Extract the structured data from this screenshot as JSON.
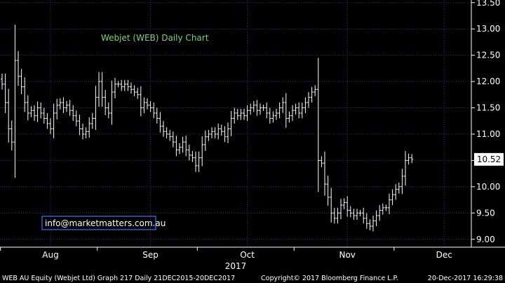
{
  "chart_data": {
    "type": "ohlc",
    "title": "Webjet (WEB) Daily Chart",
    "ylim": [
      8.85,
      13.55
    ],
    "y_ticks": [
      9.0,
      9.5,
      10.0,
      10.5,
      11.0,
      11.5,
      12.0,
      12.5,
      13.0,
      13.5
    ],
    "y_tick_labels": [
      "9.00",
      "9.50",
      "10.00",
      "10.50",
      "11.00",
      "11.50",
      "12.00",
      "12.50",
      "13.00",
      "13.50"
    ],
    "x_ticks": [
      {
        "label": "Aug",
        "index": 15
      },
      {
        "label": "Sep",
        "index": 46
      },
      {
        "label": "Oct",
        "index": 76
      },
      {
        "label": "Nov",
        "index": 107
      },
      {
        "label": "Dec",
        "index": 137
      }
    ],
    "x_group_label": "2017",
    "last_value": 10.52,
    "last_value_label": "10.52",
    "grid": true,
    "closes": [
      11.95,
      11.6,
      11.1,
      10.85,
      12.4,
      12.1,
      11.9,
      11.6,
      11.4,
      11.45,
      11.35,
      11.5,
      11.4,
      11.3,
      11.2,
      11.1,
      11.4,
      11.55,
      11.6,
      11.5,
      11.55,
      11.45,
      11.35,
      11.25,
      11.1,
      11.0,
      11.05,
      11.2,
      11.3,
      11.7,
      12.0,
      11.7,
      11.5,
      11.4,
      11.8,
      11.95,
      11.95,
      11.9,
      11.95,
      11.9,
      11.85,
      11.8,
      11.75,
      11.5,
      11.6,
      11.55,
      11.5,
      11.4,
      11.3,
      11.15,
      11.05,
      11.0,
      10.95,
      10.85,
      10.7,
      10.75,
      10.85,
      10.7,
      10.6,
      10.55,
      10.4,
      10.55,
      10.8,
      10.95,
      11.0,
      11.05,
      11.0,
      11.1,
      11.05,
      10.95,
      11.1,
      11.3,
      11.4,
      11.35,
      11.4,
      11.35,
      11.45,
      11.5,
      11.55,
      11.45,
      11.5,
      11.5,
      11.4,
      11.3,
      11.35,
      11.4,
      11.5,
      11.6,
      11.3,
      11.35,
      11.45,
      11.5,
      11.4,
      11.5,
      11.6,
      11.7,
      11.8,
      11.85,
      10.5,
      10.45,
      10.05,
      9.8,
      9.5,
      9.4,
      9.5,
      9.65,
      9.7,
      9.55,
      9.5,
      9.45,
      9.5,
      9.5,
      9.4,
      9.3,
      9.25,
      9.35,
      9.45,
      9.55,
      9.6,
      9.6,
      9.75,
      9.85,
      9.95,
      10.0,
      10.2,
      10.5,
      10.55,
      10.52
    ]
  },
  "watermark": "info@marketmatters.com.au",
  "footer": {
    "left": "WEB AU Equity (Webjet Ltd) Graph 217  Daily 21DEC2015-20DEC2017",
    "center": "Copyright© 2017 Bloomberg Finance L.P.",
    "right": "20-Dec-2017 16:29:38"
  },
  "colors": {
    "background": "#000000",
    "bars": "#ffffff",
    "grid": "#2a3a8c",
    "title": "#7fd17f",
    "watermark_border": "#2f5fd0",
    "last_value_box": "#ffffff"
  }
}
